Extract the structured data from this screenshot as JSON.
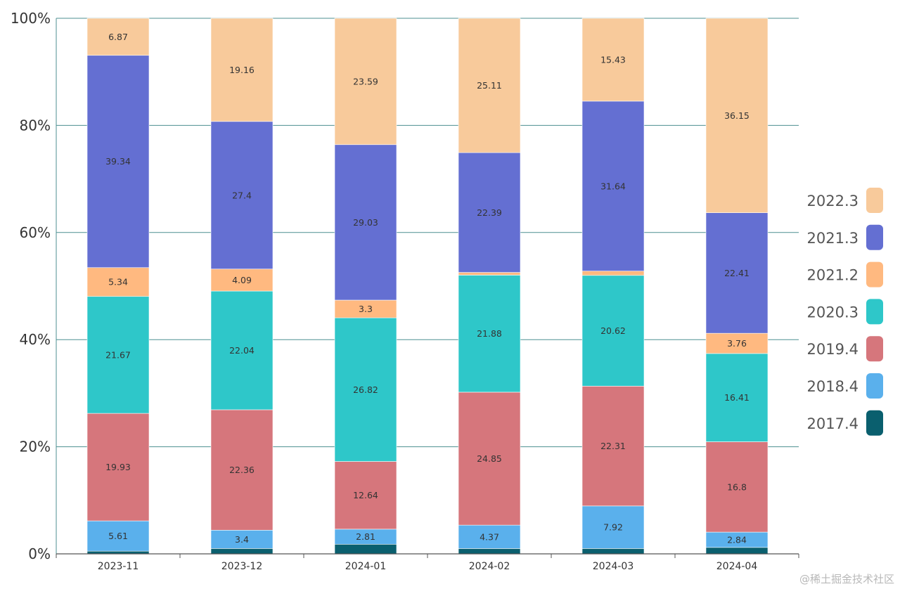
{
  "chart_data": {
    "type": "bar",
    "stacked": true,
    "normalized": true,
    "title": "",
    "xlabel": "",
    "ylabel": "",
    "ylim": [
      0,
      100
    ],
    "y_ticks": [
      "0%",
      "20%",
      "40%",
      "60%",
      "80%",
      "100%"
    ],
    "categories": [
      "2023-11",
      "2023-12",
      "2024-01",
      "2024-02",
      "2024-03",
      "2024-04"
    ],
    "series": [
      {
        "name": "2017.4",
        "color": "#0a5f6e",
        "values": [
          0.5,
          1.0,
          1.8,
          1.0,
          1.0,
          1.2
        ],
        "labels": [
          "",
          "",
          "",
          "",
          "",
          ""
        ]
      },
      {
        "name": "2018.4",
        "color": "#5ab0ec",
        "values": [
          5.61,
          3.4,
          2.81,
          4.37,
          7.92,
          2.84
        ],
        "labels": [
          "5.61",
          "3.4",
          "2.81",
          "4.37",
          "7.92",
          "2.84"
        ]
      },
      {
        "name": "2019.4",
        "color": "#d6767c",
        "values": [
          19.93,
          22.36,
          12.64,
          24.85,
          22.31,
          16.8
        ],
        "labels": [
          "19.93",
          "22.36",
          "12.64",
          "24.85",
          "22.31",
          "16.8"
        ]
      },
      {
        "name": "2020.3",
        "color": "#2ec7c9",
        "values": [
          21.67,
          22.04,
          26.82,
          21.88,
          20.62,
          16.41
        ],
        "labels": [
          "21.67",
          "22.04",
          "26.82",
          "21.88",
          "20.62",
          "16.41"
        ]
      },
      {
        "name": "2021.2",
        "color": "#ffb980",
        "values": [
          5.34,
          4.09,
          3.3,
          0.5,
          0.8,
          3.76
        ],
        "labels": [
          "5.34",
          "4.09",
          "3.3",
          "",
          "",
          "3.76"
        ]
      },
      {
        "name": "2021.3",
        "color": "#646fd2",
        "values": [
          39.34,
          27.4,
          29.03,
          22.39,
          31.64,
          22.41
        ],
        "labels": [
          "39.34",
          "27.4",
          "29.03",
          "22.39",
          "31.64",
          "22.41"
        ]
      },
      {
        "name": "2022.3",
        "color": "#f8ca9b",
        "values": [
          6.87,
          19.16,
          23.59,
          25.11,
          15.43,
          36.15
        ],
        "labels": [
          "6.87",
          "19.16",
          "23.59",
          "25.11",
          "15.43",
          "36.15"
        ]
      }
    ],
    "legend_order": [
      "2022.3",
      "2021.3",
      "2021.2",
      "2020.3",
      "2019.4",
      "2018.4",
      "2017.4"
    ],
    "legend_position": "right",
    "grid": true
  },
  "watermark": "@稀土掘金技术社区"
}
